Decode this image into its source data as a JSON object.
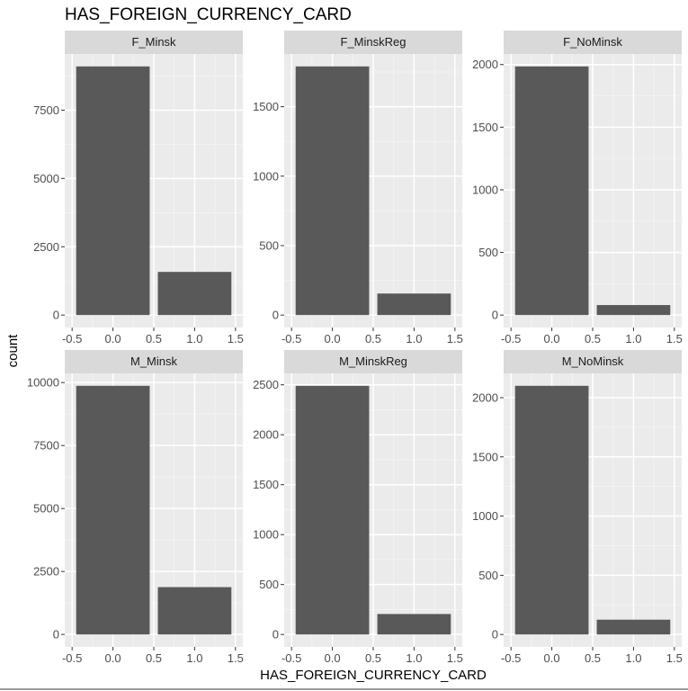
{
  "chart_data": {
    "type": "bar",
    "title": "HAS_FOREIGN_CURRENCY_CARD",
    "xlabel": "HAS_FOREIGN_CURRENCY_CARD",
    "ylabel": "count",
    "grid": true,
    "legend": "none",
    "bar_color": "#595959",
    "panel_background": "#ebebeb",
    "strip_background": "#d9d9d9",
    "xlim": [
      -0.5,
      1.5
    ],
    "x_ticks": [
      "-0.5",
      "0.0",
      "0.5",
      "1.0",
      "1.5"
    ],
    "panels": [
      {
        "name": "F_Minsk",
        "x": [
          0,
          1
        ],
        "values": [
          9100,
          1580
        ],
        "ylim": [
          0,
          9100
        ],
        "y_ticks": [
          0,
          2500,
          5000,
          7500
        ]
      },
      {
        "name": "F_MinskReg",
        "x": [
          0,
          1
        ],
        "values": [
          1790,
          155
        ],
        "ylim": [
          0,
          1790
        ],
        "y_ticks": [
          0,
          500,
          1000,
          1500
        ]
      },
      {
        "name": "F_NoMinsk",
        "x": [
          0,
          1
        ],
        "values": [
          1985,
          80
        ],
        "ylim": [
          0,
          1985
        ],
        "y_ticks": [
          0,
          500,
          1000,
          1500,
          2000
        ]
      },
      {
        "name": "M_Minsk",
        "x": [
          0,
          1
        ],
        "values": [
          9870,
          1880
        ],
        "ylim": [
          0,
          9870
        ],
        "y_ticks": [
          0,
          2500,
          5000,
          7500,
          10000
        ]
      },
      {
        "name": "M_MinskReg",
        "x": [
          0,
          1
        ],
        "values": [
          2490,
          205
        ],
        "ylim": [
          0,
          2490
        ],
        "y_ticks": [
          0,
          500,
          1000,
          1500,
          2000,
          2500
        ]
      },
      {
        "name": "M_NoMinsk",
        "x": [
          0,
          1
        ],
        "values": [
          2100,
          125
        ],
        "ylim": [
          0,
          2100
        ],
        "y_ticks": [
          0,
          500,
          1000,
          1500,
          2000
        ]
      }
    ]
  }
}
